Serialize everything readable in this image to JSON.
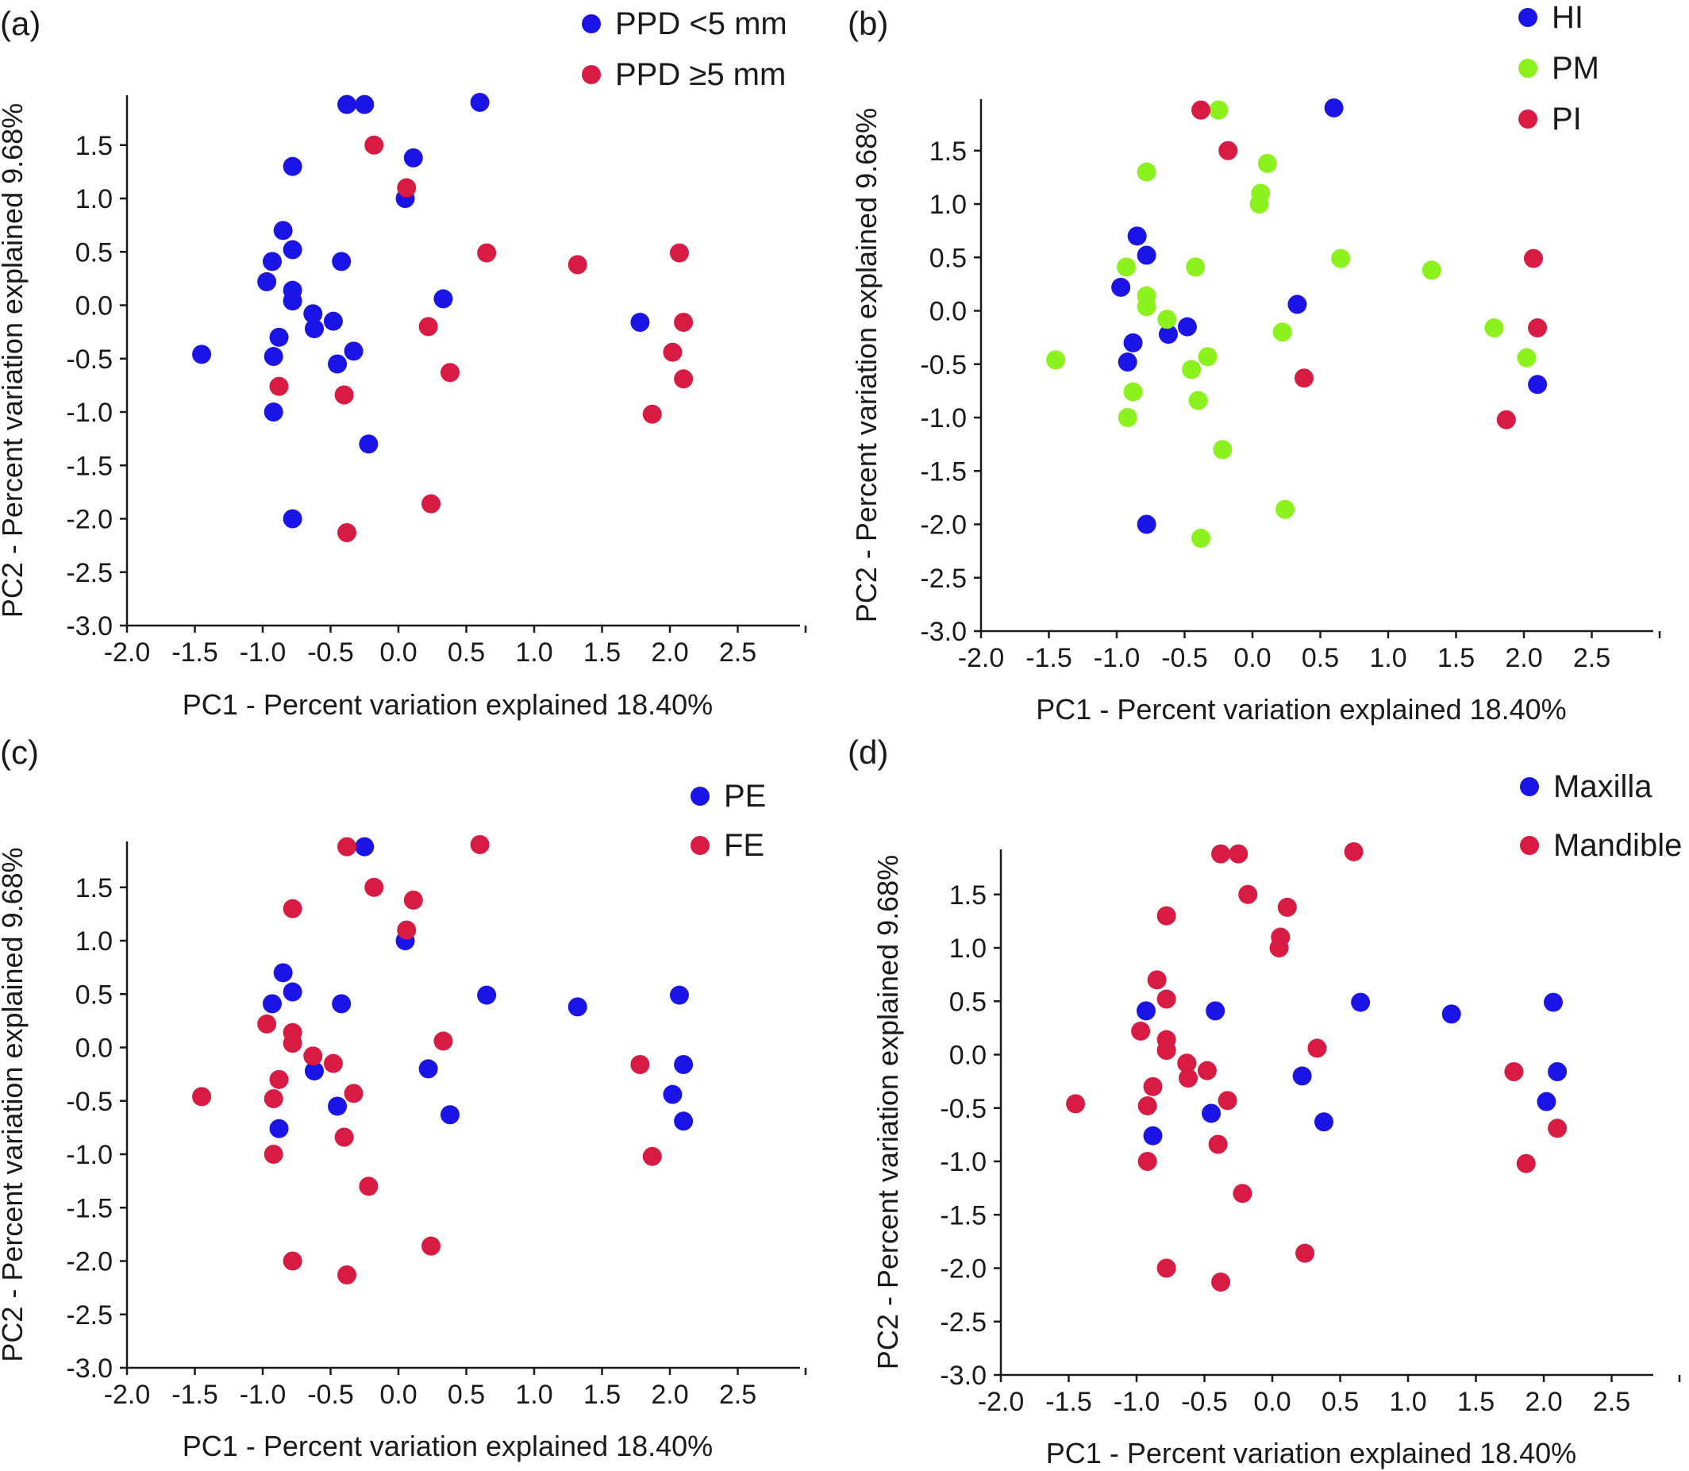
{
  "colors": {
    "blue": "#1a14e6",
    "red": "#d81b43",
    "green": "#8cf21e"
  },
  "chart_data": [
    {
      "panel": "(a)",
      "type": "scatter",
      "xlabel": "PC1 - Percent variation explained 18.40%",
      "ylabel": "PC2 - Percent variation explained 9.68%",
      "xlim": [
        -2.0,
        3.0
      ],
      "ylim": [
        -3.0,
        2.0
      ],
      "xticks": [
        "-2.0",
        "-1.5",
        "-1.0",
        "-0.5",
        "0.0",
        "0.5",
        "1.0",
        "1.5",
        "2.0",
        "2.5"
      ],
      "yticks": [
        "1.5",
        "1.0",
        "0.5",
        "0.0",
        "-0.5",
        "-1.0",
        "-1.5",
        "-2.0",
        "-2.5",
        "-3.0"
      ],
      "legend": "top-right",
      "grid": false,
      "series": [
        {
          "name": "PPD <5 mm",
          "color": "blue",
          "points": [
            [
              -1.45,
              -0.46
            ],
            [
              -0.97,
              0.22
            ],
            [
              -0.93,
              0.41
            ],
            [
              -0.92,
              -0.48
            ],
            [
              -0.92,
              -1.0
            ],
            [
              -0.88,
              -0.3
            ],
            [
              -0.85,
              0.7
            ],
            [
              -0.78,
              0.52
            ],
            [
              -0.78,
              0.14
            ],
            [
              -0.78,
              0.04
            ],
            [
              -0.78,
              1.3
            ],
            [
              -0.78,
              -2.0
            ],
            [
              -0.63,
              -0.08
            ],
            [
              -0.62,
              -0.22
            ],
            [
              -0.48,
              -0.15
            ],
            [
              -0.45,
              -0.55
            ],
            [
              -0.42,
              0.41
            ],
            [
              -0.38,
              1.88
            ],
            [
              -0.33,
              -0.43
            ],
            [
              -0.25,
              1.88
            ],
            [
              -0.22,
              -1.3
            ],
            [
              0.05,
              1.0
            ],
            [
              0.11,
              1.38
            ],
            [
              0.33,
              0.06
            ],
            [
              0.6,
              1.9
            ],
            [
              1.78,
              -0.16
            ]
          ]
        },
        {
          "name": "PPD ≥5 mm",
          "color": "red",
          "points": [
            [
              -0.88,
              -0.76
            ],
            [
              -0.4,
              -0.84
            ],
            [
              -0.38,
              -2.13
            ],
            [
              -0.18,
              1.5
            ],
            [
              0.06,
              1.1
            ],
            [
              0.22,
              -0.2
            ],
            [
              0.24,
              -1.86
            ],
            [
              0.38,
              -0.63
            ],
            [
              0.65,
              0.49
            ],
            [
              1.32,
              0.38
            ],
            [
              1.87,
              -1.02
            ],
            [
              2.02,
              -0.44
            ],
            [
              2.07,
              0.49
            ],
            [
              2.1,
              -0.16
            ],
            [
              2.1,
              -0.69
            ]
          ]
        }
      ]
    },
    {
      "panel": "(b)",
      "type": "scatter",
      "xlabel": "PC1 - Percent variation explained 18.40%",
      "ylabel": "PC2 - Percent variation explained 9.68%",
      "xlim": [
        -2.0,
        3.0
      ],
      "ylim": [
        -3.0,
        2.0
      ],
      "xticks": [
        "-2.0",
        "-1.5",
        "-1.0",
        "-0.5",
        "0.0",
        "0.5",
        "1.0",
        "1.5",
        "2.0",
        "2.5"
      ],
      "yticks": [
        "1.5",
        "1.0",
        "0.5",
        "0.0",
        "-0.5",
        "-1.0",
        "-1.5",
        "-2.0",
        "-2.5",
        "-3.0"
      ],
      "legend": "top-right",
      "grid": false,
      "series": [
        {
          "name": "HI",
          "color": "blue",
          "points": [
            [
              -0.97,
              0.22
            ],
            [
              -0.92,
              -0.48
            ],
            [
              -0.88,
              -0.3
            ],
            [
              -0.85,
              0.7
            ],
            [
              -0.78,
              0.52
            ],
            [
              -0.78,
              -2.0
            ],
            [
              -0.62,
              -0.22
            ],
            [
              -0.48,
              -0.15
            ],
            [
              0.33,
              0.06
            ],
            [
              0.6,
              1.9
            ],
            [
              2.1,
              -0.69
            ]
          ]
        },
        {
          "name": "PM",
          "color": "green",
          "points": [
            [
              -1.45,
              -0.46
            ],
            [
              -0.93,
              0.41
            ],
            [
              -0.92,
              -1.0
            ],
            [
              -0.88,
              -0.76
            ],
            [
              -0.78,
              0.14
            ],
            [
              -0.78,
              0.04
            ],
            [
              -0.78,
              1.3
            ],
            [
              -0.63,
              -0.08
            ],
            [
              -0.45,
              -0.55
            ],
            [
              -0.42,
              0.41
            ],
            [
              -0.4,
              -0.84
            ],
            [
              -0.38,
              -2.13
            ],
            [
              -0.33,
              -0.43
            ],
            [
              -0.25,
              1.88
            ],
            [
              -0.22,
              -1.3
            ],
            [
              0.05,
              1.0
            ],
            [
              0.06,
              1.1
            ],
            [
              0.11,
              1.38
            ],
            [
              0.22,
              -0.2
            ],
            [
              0.24,
              -1.86
            ],
            [
              0.65,
              0.49
            ],
            [
              1.32,
              0.38
            ],
            [
              1.78,
              -0.16
            ],
            [
              2.02,
              -0.44
            ]
          ]
        },
        {
          "name": "PI",
          "color": "red",
          "points": [
            [
              -0.38,
              1.88
            ],
            [
              -0.18,
              1.5
            ],
            [
              0.38,
              -0.63
            ],
            [
              1.87,
              -1.02
            ],
            [
              2.07,
              0.49
            ],
            [
              2.1,
              -0.16
            ]
          ]
        }
      ]
    },
    {
      "panel": "(c)",
      "type": "scatter",
      "xlabel": "PC1 - Percent variation explained 18.40%",
      "ylabel": "PC2 - Percent variation explained 9.68%",
      "xlim": [
        -2.0,
        3.0
      ],
      "ylim": [
        -3.0,
        2.0
      ],
      "xticks": [
        "-2.0",
        "-1.5",
        "-1.0",
        "-0.5",
        "0.0",
        "0.5",
        "1.0",
        "1.5",
        "2.0",
        "2.5"
      ],
      "yticks": [
        "1.5",
        "1.0",
        "0.5",
        "0.0",
        "-0.5",
        "-1.0",
        "-1.5",
        "-2.0",
        "-2.5",
        "-3.0"
      ],
      "legend": "top-right",
      "grid": false,
      "series": [
        {
          "name": "PE",
          "color": "blue",
          "points": [
            [
              -0.93,
              0.41
            ],
            [
              -0.88,
              -0.76
            ],
            [
              -0.85,
              0.7
            ],
            [
              -0.78,
              0.52
            ],
            [
              -0.62,
              -0.22
            ],
            [
              -0.45,
              -0.55
            ],
            [
              -0.42,
              0.41
            ],
            [
              -0.25,
              1.88
            ],
            [
              0.05,
              1.0
            ],
            [
              0.22,
              -0.2
            ],
            [
              0.38,
              -0.63
            ],
            [
              0.65,
              0.49
            ],
            [
              1.32,
              0.38
            ],
            [
              2.02,
              -0.44
            ],
            [
              2.07,
              0.49
            ],
            [
              2.1,
              -0.16
            ],
            [
              2.1,
              -0.69
            ]
          ]
        },
        {
          "name": "FE",
          "color": "red",
          "points": [
            [
              -1.45,
              -0.46
            ],
            [
              -0.97,
              0.22
            ],
            [
              -0.92,
              -0.48
            ],
            [
              -0.92,
              -1.0
            ],
            [
              -0.88,
              -0.3
            ],
            [
              -0.78,
              0.14
            ],
            [
              -0.78,
              0.04
            ],
            [
              -0.78,
              1.3
            ],
            [
              -0.78,
              -2.0
            ],
            [
              -0.63,
              -0.08
            ],
            [
              -0.48,
              -0.15
            ],
            [
              -0.4,
              -0.84
            ],
            [
              -0.38,
              1.88
            ],
            [
              -0.38,
              -2.13
            ],
            [
              -0.33,
              -0.43
            ],
            [
              -0.22,
              -1.3
            ],
            [
              -0.18,
              1.5
            ],
            [
              0.06,
              1.1
            ],
            [
              0.11,
              1.38
            ],
            [
              0.24,
              -1.86
            ],
            [
              0.33,
              0.06
            ],
            [
              0.6,
              1.9
            ],
            [
              1.78,
              -0.16
            ],
            [
              1.87,
              -1.02
            ]
          ]
        }
      ]
    },
    {
      "panel": "(d)",
      "type": "scatter",
      "xlabel": "PC1 - Percent variation explained 18.40%",
      "ylabel": "PC2 - Percent variation explained 9.68%",
      "xlim": [
        -2.0,
        3.0
      ],
      "ylim": [
        -3.0,
        2.0
      ],
      "xticks": [
        "-2.0",
        "-1.5",
        "-1.0",
        "-0.5",
        "0.0",
        "0.5",
        "1.0",
        "1.5",
        "2.0",
        "2.5"
      ],
      "yticks": [
        "1.5",
        "1.0",
        "0.5",
        "0.0",
        "-0.5",
        "-1.0",
        "-1.5",
        "-2.0",
        "-2.5",
        "-3.0"
      ],
      "legend": "top-right",
      "grid": false,
      "series": [
        {
          "name": "Maxilla",
          "color": "blue",
          "points": [
            [
              -0.93,
              0.41
            ],
            [
              -0.88,
              -0.76
            ],
            [
              -0.45,
              -0.55
            ],
            [
              -0.42,
              0.41
            ],
            [
              0.22,
              -0.2
            ],
            [
              0.38,
              -0.63
            ],
            [
              0.65,
              0.49
            ],
            [
              1.32,
              0.38
            ],
            [
              2.02,
              -0.44
            ],
            [
              2.07,
              0.49
            ],
            [
              2.1,
              -0.16
            ]
          ]
        },
        {
          "name": "Mandible",
          "color": "red",
          "points": [
            [
              -1.45,
              -0.46
            ],
            [
              -0.97,
              0.22
            ],
            [
              -0.92,
              -0.48
            ],
            [
              -0.92,
              -1.0
            ],
            [
              -0.88,
              -0.3
            ],
            [
              -0.85,
              0.7
            ],
            [
              -0.78,
              0.52
            ],
            [
              -0.78,
              0.14
            ],
            [
              -0.78,
              0.04
            ],
            [
              -0.78,
              1.3
            ],
            [
              -0.78,
              -2.0
            ],
            [
              -0.63,
              -0.08
            ],
            [
              -0.62,
              -0.22
            ],
            [
              -0.48,
              -0.15
            ],
            [
              -0.4,
              -0.84
            ],
            [
              -0.38,
              1.88
            ],
            [
              -0.38,
              -2.13
            ],
            [
              -0.33,
              -0.43
            ],
            [
              -0.25,
              1.88
            ],
            [
              -0.22,
              -1.3
            ],
            [
              -0.18,
              1.5
            ],
            [
              0.05,
              1.0
            ],
            [
              0.06,
              1.1
            ],
            [
              0.11,
              1.38
            ],
            [
              0.24,
              -1.86
            ],
            [
              0.33,
              0.06
            ],
            [
              0.6,
              1.9
            ],
            [
              1.78,
              -0.16
            ],
            [
              1.87,
              -1.02
            ],
            [
              2.1,
              -0.69
            ]
          ]
        }
      ]
    }
  ]
}
